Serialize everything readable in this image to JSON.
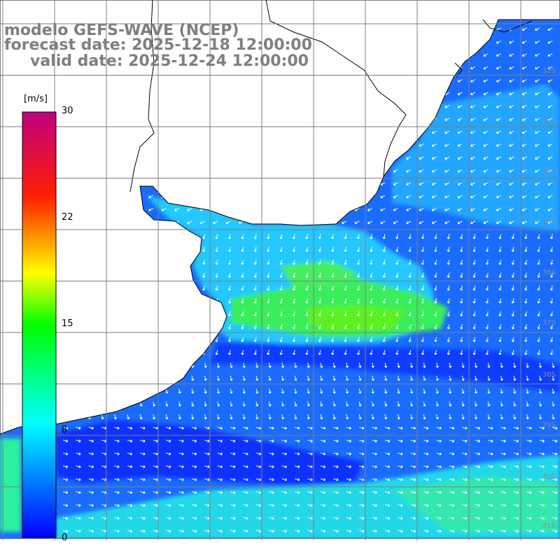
{
  "title": {
    "line1": "modelo GEFS-WAVE (NCEP)",
    "line2": "forecast date: 2025-12-18 12:00:00",
    "line3": "valid date: 2025-12-24 12:00:00"
  },
  "colorbar": {
    "unit": "[m/s]",
    "ticks": [
      "30",
      "22",
      "15",
      "8",
      "0"
    ],
    "tick_values": [
      30,
      22,
      15,
      8,
      0
    ],
    "range": [
      0,
      30
    ],
    "colors": [
      "#0000ff",
      "#00ffff",
      "#00ff00",
      "#ffff00",
      "#ff0000",
      "#c0007f"
    ]
  },
  "grid_labels": {
    "latitudes": [
      "32S",
      "33S",
      "34S",
      "35S",
      "36S",
      "37S",
      "38S",
      "39S",
      "40S",
      "41S"
    ]
  },
  "colors": {
    "land": "#ffffff",
    "coast": "#000000",
    "grid": "#7f7f7f",
    "title": "#7f7f7f",
    "arrows": "#ffffff"
  }
}
